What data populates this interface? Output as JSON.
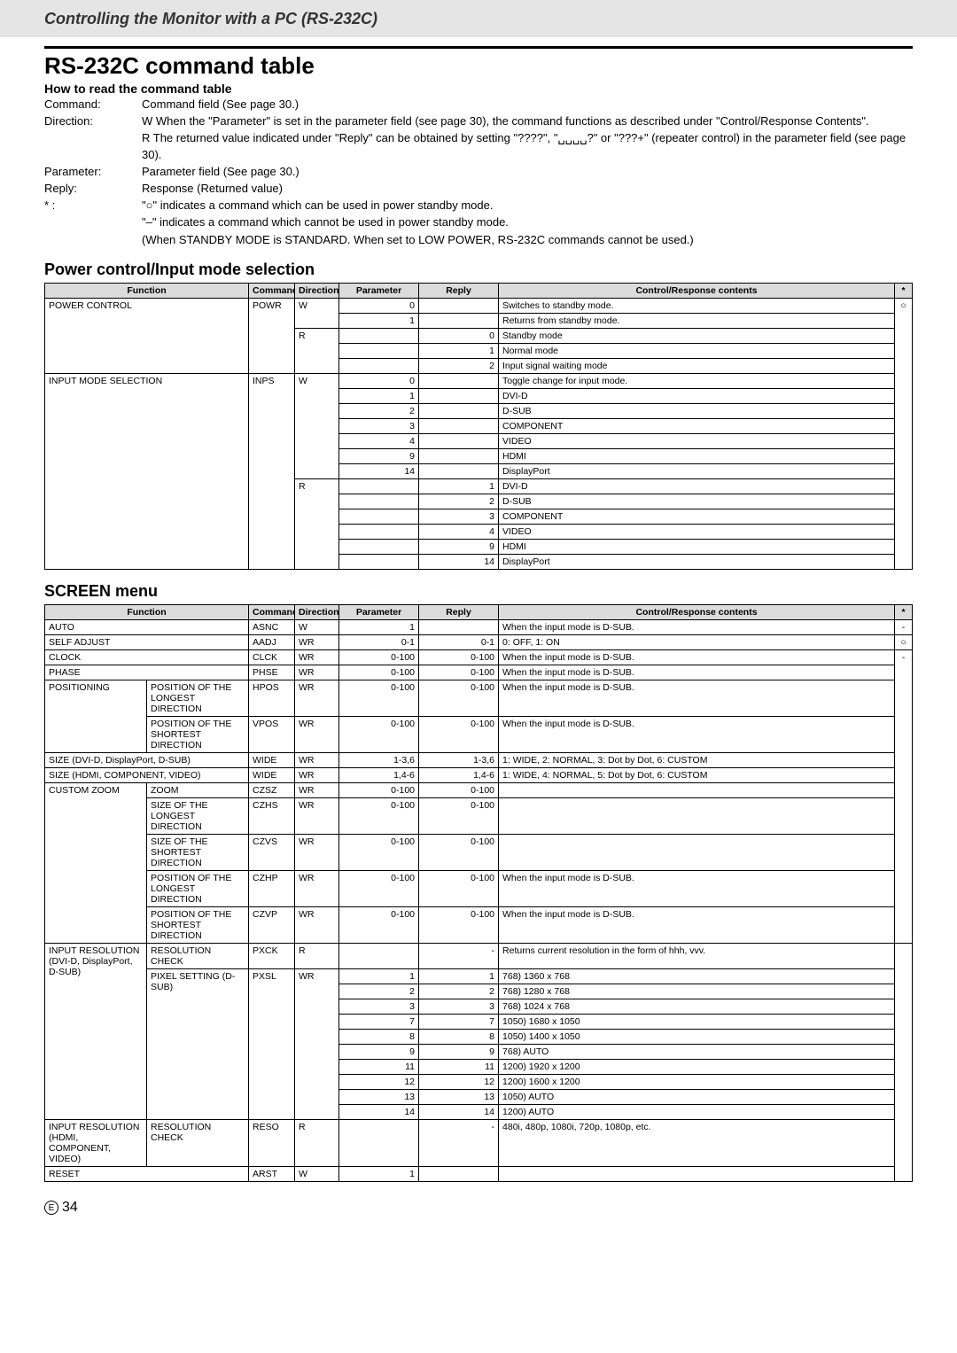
{
  "header": {
    "title": "Controlling the Monitor with a PC (RS-232C)"
  },
  "main_title": "RS-232C command table",
  "howto": {
    "heading": "How to read the command table",
    "rows": [
      {
        "label": "Command:",
        "value": "Command field (See page 30.)"
      },
      {
        "label": "Direction:",
        "value": "W  When the \"Parameter\" is set in the parameter field (see page 30), the command functions as described under \"Control/Response Contents\"."
      },
      {
        "label": "",
        "value": "R  The returned value indicated under \"Reply\" can be obtained by setting \"????\", \"␣␣␣␣?\" or \"???+\" (repeater control) in the parameter field (see page 30)."
      },
      {
        "label": "Parameter:",
        "value": "Parameter field (See page 30.)"
      },
      {
        "label": "Reply:",
        "value": "Response (Returned value)"
      },
      {
        "label": "* :",
        "value": "\"○\" indicates a command which can be used in power standby mode."
      },
      {
        "label": "",
        "value": "\"–\" indicates a command which cannot be used in power standby mode."
      },
      {
        "label": "",
        "value": "(When STANDBY MODE is STANDARD. When set to LOW POWER, RS-232C commands cannot be used.)"
      }
    ]
  },
  "columns": {
    "function": "Function",
    "command": "Command",
    "direction": "Direction",
    "parameter": "Parameter",
    "reply": "Reply",
    "contents": "Control/Response contents",
    "star": "*"
  },
  "power": {
    "title": "Power control/Input mode selection",
    "r": {
      "pc_func": "POWER CONTROL",
      "pc_cmd": "POWR",
      "pc_w": "W",
      "pc_p0": "0",
      "pc_c0": "Switches to standby mode.",
      "pc_p1": "1",
      "pc_c1": "Returns from standby mode.",
      "pc_r": "R",
      "pc_r0": "0",
      "pc_rc0": "Standby mode",
      "pc_r1": "1",
      "pc_rc1": "Normal mode",
      "pc_r2": "2",
      "pc_rc2": "Input signal waiting mode",
      "im_func": "INPUT MODE SELECTION",
      "im_cmd": "INPS",
      "im_w": "W",
      "im_p0": "0",
      "im_c0": "Toggle change for input mode.",
      "im_p1": "1",
      "im_c1": "DVI-D",
      "im_p2": "2",
      "im_c2": "D-SUB",
      "im_p3": "3",
      "im_c3": "COMPONENT",
      "im_p4": "4",
      "im_c4": "VIDEO",
      "im_p9": "9",
      "im_c9": "HDMI",
      "im_p14": "14",
      "im_c14": "DisplayPort",
      "im_r": "R",
      "im_rr1": "1",
      "im_rc1": "DVI-D",
      "im_rr2": "2",
      "im_rc2": "D-SUB",
      "im_rr3": "3",
      "im_rc3": "COMPONENT",
      "im_rr4": "4",
      "im_rc4": "VIDEO",
      "im_rr9": "9",
      "im_rc9": "HDMI",
      "im_rr14": "14",
      "im_rc14": "DisplayPort",
      "star": "○"
    }
  },
  "screen": {
    "title": "SCREEN menu",
    "r": {
      "auto": "AUTO",
      "auto_cmd": "ASNC",
      "auto_dir": "W",
      "auto_p": "1",
      "auto_c": "When the input mode is D-SUB.",
      "auto_star": "-",
      "self": "SELF ADJUST",
      "self_cmd": "AADJ",
      "self_dir": "WR",
      "self_p": "0-1",
      "self_r": "0-1",
      "self_c": "0: OFF, 1: ON",
      "self_star": "○",
      "clock": "CLOCK",
      "clock_cmd": "CLCK",
      "clock_dir": "WR",
      "clock_p": "0-100",
      "clock_r": "0-100",
      "clock_c": "When the input mode is D-SUB.",
      "phase": "PHASE",
      "phase_cmd": "PHSE",
      "phase_dir": "WR",
      "phase_p": "0-100",
      "phase_r": "0-100",
      "phase_c": "When the input mode is D-SUB.",
      "pos": "POSITIONING",
      "pos_hl": "POSITION OF THE LONGEST DIRECTION",
      "hpos_cmd": "HPOS",
      "hpos_dir": "WR",
      "hpos_p": "0-100",
      "hpos_r": "0-100",
      "hpos_c": "When the input mode is D-SUB.",
      "pos_vl": "POSITION OF THE SHORTEST DIRECTION",
      "vpos_cmd": "VPOS",
      "vpos_dir": "WR",
      "vpos_p": "0-100",
      "vpos_r": "0-100",
      "vpos_c": "When the input mode is D-SUB.",
      "size1": "SIZE (DVI-D, DisplayPort, D-SUB)",
      "size1_cmd": "WIDE",
      "size1_dir": "WR",
      "size1_p": "1-3,6",
      "size1_r": "1-3,6",
      "size1_c": "1: WIDE, 2: NORMAL, 3: Dot by Dot, 6: CUSTOM",
      "size2": "SIZE (HDMI, COMPONENT, VIDEO)",
      "size2_cmd": "WIDE",
      "size2_dir": "WR",
      "size2_p": "1,4-6",
      "size2_r": "1,4-6",
      "size2_c": "1: WIDE, 4: NORMAL, 5: Dot by Dot, 6: CUSTOM",
      "cz": "CUSTOM ZOOM",
      "cz_zoom": "ZOOM",
      "czsz_cmd": "CZSZ",
      "czsz_dir": "WR",
      "czsz_p": "0-100",
      "czsz_r": "0-100",
      "cz_long": "SIZE OF THE LONGEST DIRECTION",
      "czhs_cmd": "CZHS",
      "czhs_dir": "WR",
      "czhs_p": "0-100",
      "czhs_r": "0-100",
      "cz_short": "SIZE OF THE SHORTEST DIRECTION",
      "czvs_cmd": "CZVS",
      "czvs_dir": "WR",
      "czvs_p": "0-100",
      "czvs_r": "0-100",
      "cz_posl": "POSITION OF THE LONGEST DIRECTION",
      "czhp_cmd": "CZHP",
      "czhp_dir": "WR",
      "czhp_p": "0-100",
      "czhp_r": "0-100",
      "czhp_c": "When the input mode is D-SUB.",
      "cz_poss": "POSITION OF THE SHORTEST DIRECTION",
      "czvp_cmd": "CZVP",
      "czvp_dir": "WR",
      "czvp_p": "0-100",
      "czvp_r": "0-100",
      "czvp_c": "When the input mode is D-SUB.",
      "cz_star": "-",
      "ir": "INPUT RESOLUTION (DVI-D, DisplayPort, D-SUB)",
      "ir_check": "RESOLUTION CHECK",
      "pxck_cmd": "PXCK",
      "pxck_dir": "R",
      "pxck_r": "-",
      "pxck_c": "Returns current resolution in the form of hhh, vvv.",
      "ir_px": "PIXEL SETTING (D-SUB)",
      "pxsl_cmd": "PXSL",
      "pxsl_dir": "WR",
      "px1_p": "1",
      "px1_r": "1",
      "px1_c": "768) 1360 x 768",
      "px2_p": "2",
      "px2_r": "2",
      "px2_c": "768) 1280 x 768",
      "px3_p": "3",
      "px3_r": "3",
      "px3_c": "768) 1024 x 768",
      "px7_p": "7",
      "px7_r": "7",
      "px7_c": "1050) 1680 x 1050",
      "px8_p": "8",
      "px8_r": "8",
      "px8_c": "1050) 1400 x 1050",
      "px9_p": "9",
      "px9_r": "9",
      "px9_c": "768) AUTO",
      "px11_p": "11",
      "px11_r": "11",
      "px11_c": "1200) 1920 x 1200",
      "px12_p": "12",
      "px12_r": "12",
      "px12_c": "1200) 1600 x 1200",
      "px13_p": "13",
      "px13_r": "13",
      "px13_c": "1050) AUTO",
      "px14_p": "14",
      "px14_r": "14",
      "px14_c": "1200) AUTO",
      "ir2": "INPUT RESOLUTION (HDMI, COMPONENT, VIDEO)",
      "ir2_check": "RESOLUTION CHECK",
      "reso_cmd": "RESO",
      "reso_dir": "R",
      "reso_r": "-",
      "reso_c": "480i, 480p, 1080i, 720p, 1080p, etc.",
      "reset": "RESET",
      "reset_cmd": "ARST",
      "reset_dir": "W",
      "reset_p": "1"
    }
  },
  "footer": {
    "e": "E",
    "page": "34"
  }
}
